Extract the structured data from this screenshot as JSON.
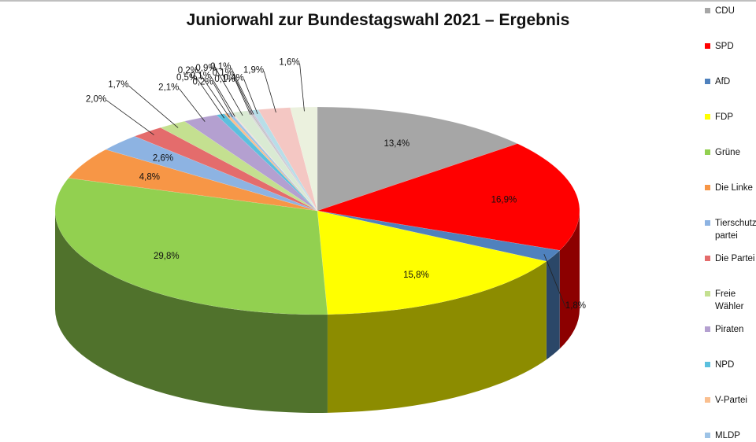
{
  "chart_data": {
    "type": "pie",
    "title": "Juniorwahl zur Bundestagswahl 2021 – Ergebnis",
    "legend_position": "right",
    "slices": [
      {
        "name": "CDU",
        "value": 13.4,
        "label": "13,4%",
        "color": "#a6a6a6"
      },
      {
        "name": "SPD",
        "value": 16.9,
        "label": "16,9%",
        "color": "#ff0000"
      },
      {
        "name": "AfD",
        "value": 1.8,
        "label": "1,8%",
        "color": "#4f81bd"
      },
      {
        "name": "FDP",
        "value": 15.8,
        "label": "15,8%",
        "color": "#ffff00"
      },
      {
        "name": "Grüne",
        "value": 29.8,
        "label": "29,8%",
        "color": "#92d050"
      },
      {
        "name": "Die Linke",
        "value": 4.8,
        "label": "4,8%",
        "color": "#f79646"
      },
      {
        "name": "Tierschutzpartei",
        "value": 2.6,
        "label": "2,6%",
        "color": "#8db3e2"
      },
      {
        "name": "Die Partei",
        "value": 2.0,
        "label": "2,0%",
        "color": "#e46c6c"
      },
      {
        "name": "Freie Wähler",
        "value": 1.7,
        "label": "1,7%",
        "color": "#c4e090"
      },
      {
        "name": "Piraten",
        "value": 2.1,
        "label": "2,1%",
        "color": "#b4a0d0"
      },
      {
        "name": "NPD",
        "value": 0.5,
        "label": "0,5%",
        "color": "#5bc0de"
      },
      {
        "name": "V-Partei",
        "value": 0.2,
        "label": "0,2%",
        "color": "#fabf8f"
      },
      {
        "name": "MLDP",
        "value": 0.2,
        "label": "0,2%",
        "color": "#9dc3e6"
      },
      {
        "name": "",
        "value": 0.1,
        "label": "0,1%",
        "color": "#f2dcdb"
      },
      {
        "name": "",
        "value": 0.9,
        "label": "0,9%",
        "color": "#d9ead3"
      },
      {
        "name": "",
        "value": 0.1,
        "label": "0,1%",
        "color": "#d9d9d9"
      },
      {
        "name": "",
        "value": 0.1,
        "label": "0,1%",
        "color": "#bfbfbf"
      },
      {
        "name": "",
        "value": 0.1,
        "label": "0,1%",
        "color": "#ccc0da"
      },
      {
        "name": "",
        "value": 0.4,
        "label": "0,4%",
        "color": "#b7dee8"
      },
      {
        "name": "",
        "value": 1.9,
        "label": "1,9%",
        "color": "#f4c7c3"
      },
      {
        "name": "",
        "value": 1.6,
        "label": "1,6%",
        "color": "#ebf1de"
      }
    ],
    "legend": [
      {
        "text": "CDU",
        "color": "#a6a6a6"
      },
      {
        "text": "SPD",
        "color": "#ff0000"
      },
      {
        "text": "AfD",
        "color": "#4f81bd"
      },
      {
        "text": "FDP",
        "color": "#ffff00"
      },
      {
        "text": "Grüne",
        "color": "#92d050"
      },
      {
        "text": "Die Linke",
        "color": "#f79646"
      },
      {
        "text": "Tierschutz-partei",
        "color": "#8db3e2"
      },
      {
        "text": "Die Partei",
        "color": "#e46c6c"
      },
      {
        "text": "Freie Wähler",
        "color": "#c4e090"
      },
      {
        "text": "Piraten",
        "color": "#b4a0d0"
      },
      {
        "text": "NPD",
        "color": "#5bc0de"
      },
      {
        "text": "V-Partei",
        "color": "#fabf8f"
      },
      {
        "text": "MLDP",
        "color": "#9dc3e6"
      }
    ]
  }
}
